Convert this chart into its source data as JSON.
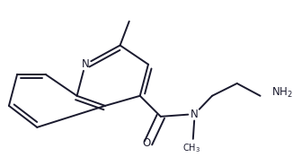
{
  "bg_color": "#ffffff",
  "line_color": "#1a1a2e",
  "lw": 1.4,
  "fs": 8.5,
  "figsize": [
    3.26,
    1.85
  ],
  "dpi": 100,
  "xlim": [
    0,
    326
  ],
  "ylim": [
    0,
    185
  ]
}
